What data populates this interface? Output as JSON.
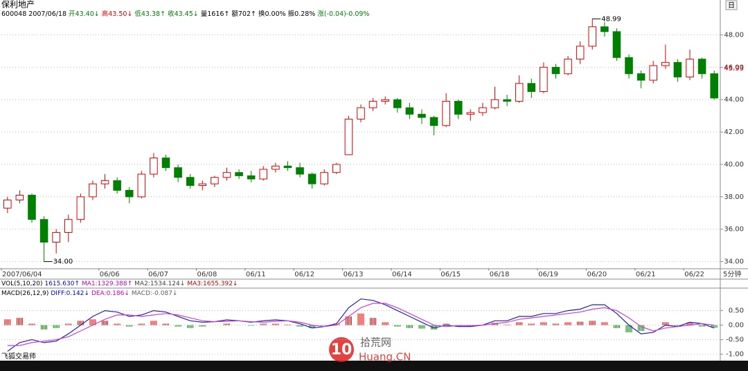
{
  "chart_data": [
    {
      "type": "candlestick",
      "title": "保利地产",
      "info": [
        {
          "text": "600048 2007/06/18",
          "color": "#000000"
        },
        {
          "text": "开43.40↓",
          "color": "#008000"
        },
        {
          "text": "高43.50↓",
          "color": "#e00000"
        },
        {
          "text": "低43.38↑",
          "color": "#008000"
        },
        {
          "text": "收43.45↓",
          "color": "#008000"
        },
        {
          "text": "量1616↑",
          "color": "#000000"
        },
        {
          "text": "额702↑",
          "color": "#000000"
        },
        {
          "text": "换0.00%",
          "color": "#000000"
        },
        {
          "text": "振0.28%",
          "color": "#000000"
        },
        {
          "text": "涨(-0.04)-0.09%",
          "color": "#008000"
        }
      ],
      "categories": [
        "2007/06/04",
        null,
        null,
        null,
        null,
        null,
        null,
        null,
        "06/06",
        null,
        null,
        null,
        "06/07",
        null,
        null,
        null,
        "06/08",
        null,
        null,
        null,
        "06/11",
        null,
        null,
        null,
        "06/12",
        null,
        null,
        null,
        "06/13",
        null,
        null,
        null,
        "06/14",
        null,
        null,
        null,
        "06/15",
        null,
        null,
        null,
        "06/18",
        null,
        null,
        null,
        "06/19",
        null,
        null,
        null,
        "06/20",
        null,
        null,
        null,
        "06/21",
        null,
        null,
        null,
        "06/22",
        null,
        null
      ],
      "x_unit": "5分钟",
      "open": [
        37.3,
        37.8,
        38.1,
        36.6,
        35.2,
        35.8,
        36.6,
        38.0,
        38.8,
        39.0,
        38.4,
        38.0,
        39.4,
        40.4,
        39.8,
        39.2,
        38.7,
        38.8,
        39.2,
        39.5,
        39.3,
        39.1,
        39.7,
        39.9,
        39.8,
        39.4,
        38.8,
        39.5,
        40.6,
        42.8,
        43.5,
        43.9,
        44.0,
        43.5,
        43.1,
        42.9,
        42.4,
        43.9,
        43.1,
        43.2,
        43.5,
        44.0,
        43.9,
        45.0,
        44.5,
        46.0,
        45.6,
        46.5,
        47.3,
        48.5,
        48.2,
        46.6,
        45.6,
        45.2,
        46.1,
        46.3,
        45.4,
        46.5,
        45.6
      ],
      "high": [
        38.0,
        38.4,
        38.2,
        36.8,
        36.0,
        36.9,
        38.2,
        39.0,
        39.4,
        39.2,
        38.6,
        39.6,
        40.7,
        40.6,
        40.0,
        39.4,
        39.0,
        39.3,
        39.8,
        39.7,
        39.6,
        39.9,
        40.1,
        40.2,
        40.1,
        39.5,
        39.7,
        40.1,
        43.0,
        43.7,
        44.1,
        44.2,
        44.1,
        43.8,
        43.4,
        43.0,
        44.4,
        44.0,
        43.4,
        43.8,
        44.8,
        44.3,
        45.5,
        45.3,
        46.3,
        46.2,
        46.7,
        47.6,
        48.99,
        48.8,
        48.4,
        46.8,
        45.8,
        46.4,
        47.4,
        46.5,
        47.1,
        46.6,
        45.8
      ],
      "low": [
        37.0,
        37.6,
        36.4,
        34.0,
        34.5,
        35.2,
        36.4,
        37.8,
        38.5,
        38.2,
        37.6,
        37.9,
        39.2,
        39.6,
        38.9,
        38.5,
        38.4,
        38.6,
        39.0,
        39.1,
        38.9,
        39.0,
        39.5,
        39.6,
        39.2,
        38.5,
        38.7,
        39.4,
        40.6,
        42.6,
        43.3,
        43.7,
        43.2,
        42.8,
        42.5,
        41.8,
        42.3,
        42.8,
        42.7,
        43.0,
        43.4,
        43.6,
        43.8,
        44.1,
        44.4,
        45.3,
        45.5,
        46.2,
        47.1,
        47.9,
        46.4,
        45.3,
        44.7,
        45.0,
        45.9,
        45.1,
        45.2,
        45.3,
        44.0
      ],
      "close": [
        37.8,
        38.1,
        36.6,
        35.2,
        35.8,
        36.6,
        38.0,
        38.8,
        39.0,
        38.4,
        38.0,
        39.4,
        40.4,
        39.8,
        39.2,
        38.7,
        38.8,
        39.2,
        39.5,
        39.3,
        39.1,
        39.7,
        39.9,
        39.8,
        39.4,
        38.8,
        39.5,
        40.0,
        42.8,
        43.5,
        43.9,
        44.0,
        43.5,
        43.1,
        42.9,
        42.4,
        43.9,
        43.1,
        43.2,
        43.5,
        44.0,
        43.9,
        45.0,
        44.5,
        46.0,
        45.6,
        46.5,
        47.3,
        48.5,
        48.2,
        46.6,
        45.6,
        45.2,
        46.1,
        46.3,
        45.4,
        46.5,
        45.6,
        44.1
      ],
      "up_color": "#e00000",
      "down_color": "#008000",
      "ylim": [
        33.6,
        49.3
      ],
      "yticks": [
        {
          "value": 34,
          "label": "34.00"
        },
        {
          "value": 36,
          "label": "36.00"
        },
        {
          "value": 38,
          "label": "38.00"
        },
        {
          "value": 40,
          "label": "40.00"
        },
        {
          "value": 42,
          "label": "42.00"
        },
        {
          "value": 44,
          "label": "44.00"
        },
        {
          "value": 46,
          "label": "46.00"
        },
        {
          "value": 48,
          "label": "48.00"
        }
      ],
      "grid": true,
      "low_marker": {
        "value": 34.0,
        "label": "34.00"
      },
      "high_marker": {
        "value": 48.99,
        "label": "48.99"
      },
      "last_price": {
        "value": 45.93,
        "label": "45.93",
        "color": "#e00000"
      },
      "vol_legend": [
        {
          "text": "VOL(5,10,20)",
          "color": "#000000"
        },
        {
          "text": "1615.630↑",
          "color": "#0000c0"
        },
        {
          "text": "MA1:1329.388↑",
          "color": "#c000c0"
        },
        {
          "text": "MA2:1534.124↓",
          "color": "#404040"
        },
        {
          "text": "MA3:1655.392↓",
          "color": "#c00000"
        }
      ]
    },
    {
      "type": "macd",
      "legend": [
        {
          "text": "MACD(26,12,9)",
          "color": "#000000"
        },
        {
          "text": "DIFF:0.142↓",
          "color": "#0000c0"
        },
        {
          "text": "DEA:0.186↓",
          "color": "#c000c0"
        },
        {
          "text": "MACD:-0.087↓",
          "color": "#606060"
        }
      ],
      "histogram": {
        "values": [
          0.2,
          0.25,
          0.05,
          -0.15,
          -0.1,
          0.05,
          0.15,
          0.2,
          0.15,
          0.05,
          -0.05,
          0.05,
          0.15,
          0.05,
          -0.05,
          -0.1,
          -0.05,
          0.0,
          0.05,
          0.0,
          -0.02,
          0.05,
          0.05,
          0.02,
          -0.05,
          -0.1,
          -0.02,
          0.05,
          0.3,
          0.4,
          0.25,
          0.1,
          -0.05,
          -0.1,
          -0.12,
          -0.15,
          0.05,
          -0.05,
          -0.05,
          0.0,
          0.08,
          0.02,
          0.1,
          0.05,
          0.1,
          0.05,
          0.1,
          0.12,
          0.15,
          0.1,
          -0.1,
          -0.25,
          -0.2,
          0.0,
          0.1,
          -0.05,
          0.08,
          -0.05,
          -0.09
        ],
        "up_color": "#e00000",
        "down_color": "#008000"
      },
      "series": [
        {
          "color": "#2020b0",
          "values": [
            -0.9,
            -0.6,
            -0.5,
            -0.6,
            -0.55,
            -0.3,
            0.0,
            0.3,
            0.5,
            0.45,
            0.3,
            0.35,
            0.5,
            0.45,
            0.3,
            0.15,
            0.1,
            0.12,
            0.18,
            0.15,
            0.1,
            0.15,
            0.18,
            0.15,
            0.05,
            -0.1,
            -0.05,
            0.05,
            0.6,
            0.9,
            0.85,
            0.7,
            0.5,
            0.3,
            0.1,
            -0.1,
            0.0,
            -0.05,
            -0.05,
            0.0,
            0.15,
            0.15,
            0.3,
            0.3,
            0.4,
            0.4,
            0.5,
            0.55,
            0.7,
            0.7,
            0.4,
            0.0,
            -0.3,
            -0.25,
            0.0,
            -0.05,
            0.1,
            0.05,
            -0.1
          ]
        },
        {
          "color": "#d040d0",
          "values": [
            -0.7,
            -0.7,
            -0.6,
            -0.55,
            -0.5,
            -0.4,
            -0.2,
            0.0,
            0.2,
            0.35,
            0.35,
            0.3,
            0.35,
            0.4,
            0.35,
            0.25,
            0.15,
            0.12,
            0.13,
            0.15,
            0.12,
            0.1,
            0.13,
            0.15,
            0.1,
            0.0,
            -0.05,
            0.0,
            0.3,
            0.6,
            0.75,
            0.75,
            0.6,
            0.4,
            0.2,
            0.0,
            -0.05,
            -0.02,
            -0.02,
            0.0,
            0.05,
            0.1,
            0.2,
            0.25,
            0.3,
            0.35,
            0.4,
            0.45,
            0.55,
            0.6,
            0.5,
            0.25,
            -0.05,
            -0.2,
            -0.1,
            -0.05,
            0.0,
            0.05,
            0.0
          ]
        }
      ],
      "ylim": [
        -1.15,
        1.25
      ],
      "yticks": [
        {
          "value": 0.5,
          "label": "0.50"
        },
        {
          "value": 0,
          "label": "0.00"
        },
        {
          "value": -0.5,
          "label": "-0.50"
        },
        {
          "value": -1,
          "label": "-1.00"
        }
      ],
      "grid": true
    }
  ],
  "period_button": "日",
  "software": "飞狐交易师",
  "watermark": {
    "logo": "10",
    "name": "拾荒网",
    "site": "Huang.CN"
  }
}
